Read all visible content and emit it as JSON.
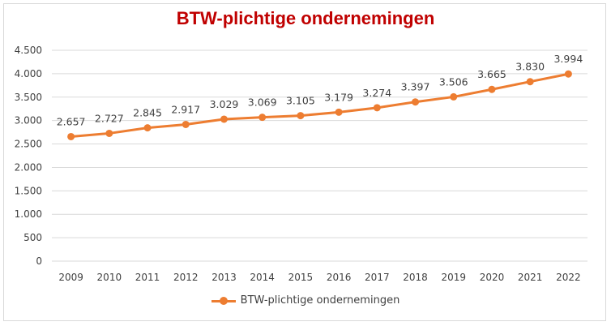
{
  "chart_data": {
    "type": "line",
    "title": "BTW-plichtige ondernemingen",
    "xlabel": "",
    "ylabel": "",
    "categories": [
      "2009",
      "2010",
      "2011",
      "2012",
      "2013",
      "2014",
      "2015",
      "2016",
      "2017",
      "2018",
      "2019",
      "2020",
      "2021",
      "2022"
    ],
    "series": [
      {
        "name": "BTW-plichtige ondernemingen",
        "values": [
          2657,
          2727,
          2845,
          2917,
          3029,
          3069,
          3105,
          3179,
          3274,
          3397,
          3506,
          3665,
          3830,
          3994
        ],
        "labels": [
          "2.657",
          "2.727",
          "2.845",
          "2.917",
          "3.029",
          "3.069",
          "3.105",
          "3.179",
          "3.274",
          "3.397",
          "3.506",
          "3.665",
          "3.830",
          "3.994"
        ],
        "color": "#ed7d31"
      }
    ],
    "ylim": [
      0,
      4500
    ],
    "yticks": [
      0,
      500,
      1000,
      1500,
      2000,
      2500,
      3000,
      3500,
      4000,
      4500
    ],
    "ytick_labels": [
      "0",
      "500",
      "1.000",
      "1.500",
      "2.000",
      "2.500",
      "3.000",
      "3.500",
      "4.000",
      "4.500"
    ],
    "grid": true,
    "legend_position": "bottom",
    "gridline_color": "#d9d9d9",
    "title_color": "#c00000"
  }
}
